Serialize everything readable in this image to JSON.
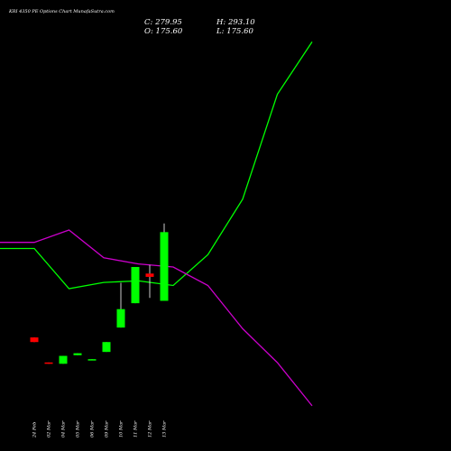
{
  "header": {
    "title": "KRI 4350 PE Options  Chart MunafaSutra.com",
    "open_label": "O: 175.60",
    "close_label": "C: 279.95",
    "high_label": "H: 293.10",
    "low_label": "L: 175.60"
  },
  "colors": {
    "background": "#000000",
    "bull": "#00ff00",
    "bear": "#ff0000",
    "line_green": "#00ff00",
    "line_magenta": "#cc00cc",
    "wick": "#ffffff"
  },
  "chart_data": {
    "type": "candlestick",
    "categories": [
      "24 Feb",
      "02 Mar",
      "04 Mar",
      "05 Mar",
      "06 Mar",
      "09 Mar",
      "10 Mar",
      "11 Mar",
      "12 Mar",
      "13 Mar"
    ],
    "candles": [
      {
        "date": "24 Feb",
        "open": 120.0,
        "high": 120.0,
        "low": 113.0,
        "close": 113.0
      },
      {
        "date": "02 Mar",
        "open": 82.0,
        "high": 82.0,
        "low": 80.0,
        "close": 80.0
      },
      {
        "date": "04 Mar",
        "open": 80.0,
        "high": 92.0,
        "low": 80.0,
        "close": 92.0
      },
      {
        "date": "05 Mar",
        "open": 93.0,
        "high": 96.0,
        "low": 93.0,
        "close": 96.0
      },
      {
        "date": "06 Mar",
        "open": 86.5,
        "high": 87.0,
        "low": 86.5,
        "close": 87.0
      },
      {
        "date": "09 Mar",
        "open": 98.0,
        "high": 113.0,
        "low": 98.0,
        "close": 113.0
      },
      {
        "date": "10 Mar",
        "open": 135.0,
        "high": 203.0,
        "low": 135.0,
        "close": 163.0
      },
      {
        "date": "11 Mar",
        "open": 172.0,
        "high": 227.0,
        "low": 172.0,
        "close": 227.0
      },
      {
        "date": "12 Mar",
        "open": 217.0,
        "high": 230.0,
        "low": 180.0,
        "close": 212.0
      },
      {
        "date": "13 Mar",
        "open": 175.6,
        "high": 293.1,
        "low": 175.6,
        "close": 279.95
      }
    ],
    "overlay_lines": [
      {
        "color": "green",
        "values": [
          275.0,
          275.0,
          262.0,
          264.0,
          264.5,
          263.0,
          273.0,
          291.0,
          325.0,
          342.0
        ]
      },
      {
        "color": "magenta",
        "values": [
          277.0,
          277.0,
          281.0,
          272.0,
          270.0,
          269.0,
          263.0,
          249.0,
          238.0,
          224.0
        ]
      }
    ]
  }
}
